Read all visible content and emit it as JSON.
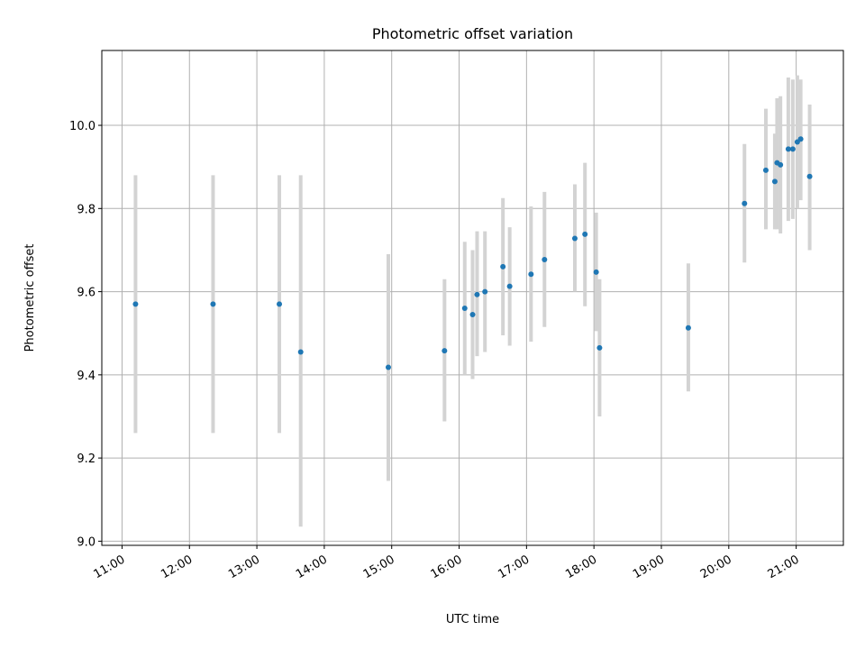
{
  "chart_data": {
    "type": "scatter",
    "title": "Photometric offset variation",
    "xlabel": "UTC time",
    "ylabel": "Photometric offset",
    "xlim": [
      "10:42",
      "21:42"
    ],
    "ylim": [
      8.99,
      10.18
    ],
    "x_ticks": [
      "11:00",
      "12:00",
      "13:00",
      "14:00",
      "15:00",
      "16:00",
      "17:00",
      "18:00",
      "19:00",
      "20:00",
      "21:00"
    ],
    "y_ticks": [
      "9.0",
      "9.2",
      "9.4",
      "9.6",
      "9.8",
      "10.0"
    ],
    "grid": true,
    "error_bar_color": "#d3d3d3",
    "marker_color": "#1f77b4",
    "points": [
      {
        "x": "11:12",
        "y": 9.57,
        "ylo": 9.26,
        "yhi": 9.88
      },
      {
        "x": "12:21",
        "y": 9.57,
        "ylo": 9.26,
        "yhi": 9.88
      },
      {
        "x": "13:20",
        "y": 9.57,
        "ylo": 9.26,
        "yhi": 9.88
      },
      {
        "x": "13:39",
        "y": 9.455,
        "ylo": 9.035,
        "yhi": 9.88
      },
      {
        "x": "14:57",
        "y": 9.418,
        "ylo": 9.145,
        "yhi": 9.69
      },
      {
        "x": "15:47",
        "y": 9.458,
        "ylo": 9.288,
        "yhi": 9.63
      },
      {
        "x": "16:05",
        "y": 9.56,
        "ylo": 9.4,
        "yhi": 9.72
      },
      {
        "x": "16:12",
        "y": 9.545,
        "ylo": 9.39,
        "yhi": 9.7
      },
      {
        "x": "16:16",
        "y": 9.593,
        "ylo": 9.445,
        "yhi": 9.745
      },
      {
        "x": "16:23",
        "y": 9.6,
        "ylo": 9.455,
        "yhi": 9.745
      },
      {
        "x": "16:39",
        "y": 9.66,
        "ylo": 9.495,
        "yhi": 9.825
      },
      {
        "x": "16:45",
        "y": 9.613,
        "ylo": 9.47,
        "yhi": 9.755
      },
      {
        "x": "17:04",
        "y": 9.642,
        "ylo": 9.48,
        "yhi": 9.805
      },
      {
        "x": "17:16",
        "y": 9.677,
        "ylo": 9.515,
        "yhi": 9.84
      },
      {
        "x": "17:43",
        "y": 9.728,
        "ylo": 9.6,
        "yhi": 9.858
      },
      {
        "x": "17:52",
        "y": 9.738,
        "ylo": 9.565,
        "yhi": 9.91
      },
      {
        "x": "18:02",
        "y": 9.647,
        "ylo": 9.505,
        "yhi": 9.79
      },
      {
        "x": "18:05",
        "y": 9.465,
        "ylo": 9.3,
        "yhi": 9.63
      },
      {
        "x": "19:24",
        "y": 9.513,
        "ylo": 9.36,
        "yhi": 9.668
      },
      {
        "x": "20:14",
        "y": 9.812,
        "ylo": 9.67,
        "yhi": 9.955
      },
      {
        "x": "20:33",
        "y": 9.892,
        "ylo": 9.75,
        "yhi": 10.04
      },
      {
        "x": "20:41",
        "y": 9.865,
        "ylo": 9.75,
        "yhi": 9.98
      },
      {
        "x": "20:43",
        "y": 9.91,
        "ylo": 9.75,
        "yhi": 10.065
      },
      {
        "x": "20:46",
        "y": 9.905,
        "ylo": 9.74,
        "yhi": 10.07
      },
      {
        "x": "20:53",
        "y": 9.943,
        "ylo": 9.77,
        "yhi": 10.115
      },
      {
        "x": "20:57",
        "y": 9.943,
        "ylo": 9.775,
        "yhi": 10.11
      },
      {
        "x": "21:01",
        "y": 9.96,
        "ylo": 9.8,
        "yhi": 10.12
      },
      {
        "x": "21:04",
        "y": 9.967,
        "ylo": 9.82,
        "yhi": 10.11
      },
      {
        "x": "21:12",
        "y": 9.877,
        "ylo": 9.7,
        "yhi": 10.05
      }
    ]
  }
}
